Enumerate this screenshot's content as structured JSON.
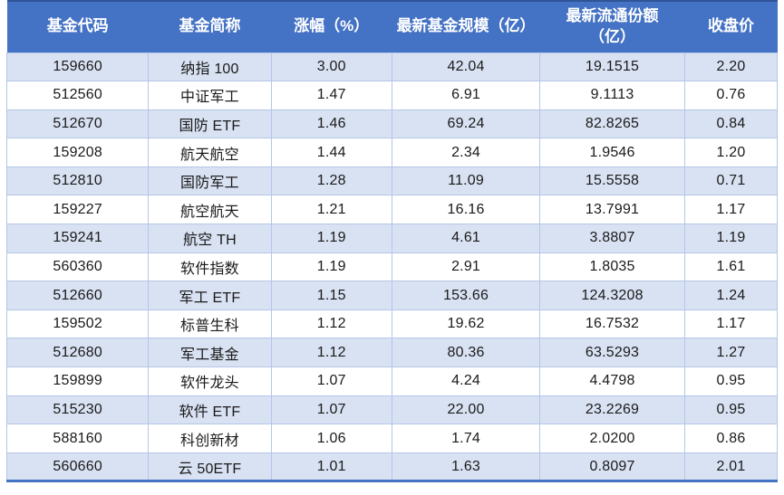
{
  "chart_data": {
    "type": "table",
    "columns": [
      "基金代码",
      "基金简称",
      "涨幅（%）",
      "最新基金规模（亿）",
      "最新流通份额（亿）",
      "收盘价"
    ],
    "rows": [
      [
        "159660",
        "纳指 100",
        "3.00",
        "42.04",
        "19.1515",
        "2.20"
      ],
      [
        "512560",
        "中证军工",
        "1.47",
        "6.91",
        "9.1113",
        "0.76"
      ],
      [
        "512670",
        "国防 ETF",
        "1.46",
        "69.24",
        "82.8265",
        "0.84"
      ],
      [
        "159208",
        "航天航空",
        "1.44",
        "2.34",
        "1.9546",
        "1.20"
      ],
      [
        "512810",
        "国防军工",
        "1.28",
        "11.09",
        "15.5558",
        "0.71"
      ],
      [
        "159227",
        "航空航天",
        "1.21",
        "16.16",
        "13.7991",
        "1.17"
      ],
      [
        "159241",
        "航空 TH",
        "1.19",
        "4.61",
        "3.8807",
        "1.19"
      ],
      [
        "560360",
        "软件指数",
        "1.19",
        "2.91",
        "1.8035",
        "1.61"
      ],
      [
        "512660",
        "军工 ETF",
        "1.15",
        "153.66",
        "124.3208",
        "1.24"
      ],
      [
        "159502",
        "标普生科",
        "1.12",
        "19.62",
        "16.7532",
        "1.17"
      ],
      [
        "512680",
        "军工基金",
        "1.12",
        "80.36",
        "63.5293",
        "1.27"
      ],
      [
        "159899",
        "软件龙头",
        "1.07",
        "4.24",
        "4.4798",
        "0.95"
      ],
      [
        "515230",
        "软件 ETF",
        "1.07",
        "22.00",
        "23.2269",
        "0.95"
      ],
      [
        "588160",
        "科创新材",
        "1.06",
        "1.74",
        "2.0200",
        "0.86"
      ],
      [
        "560660",
        "云 50ETF",
        "1.01",
        "1.63",
        "0.8097",
        "2.01"
      ]
    ],
    "layout": {
      "banded_rows": true,
      "align": "center",
      "column_widths_pct": [
        18.4,
        15.9,
        15.7,
        19.2,
        18.8,
        12.0
      ],
      "legend_position": "none",
      "grid": true
    }
  },
  "colors": {
    "header_bg": "#4472C4",
    "header_top_border": "#2F5597",
    "header_text": "#FFFFFF",
    "band_fill": "#D9E2F3",
    "row_fill": "#FFFFFF",
    "grid_border": "#B4C6E7",
    "bottom_border": "#4472C4",
    "text": "#1A1A1A"
  }
}
